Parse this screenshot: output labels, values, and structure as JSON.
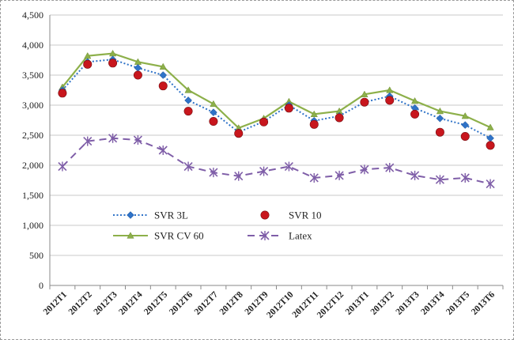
{
  "chart_data": {
    "type": "line",
    "title": "",
    "xlabel": "",
    "ylabel": "",
    "ylim": [
      0,
      4500
    ],
    "yticks": [
      "0",
      "500",
      "1,000",
      "1,500",
      "2,000",
      "2,500",
      "3,000",
      "3,500",
      "4,000",
      "4,500"
    ],
    "ytick_values": [
      0,
      500,
      1000,
      1500,
      2000,
      2500,
      3000,
      3500,
      4000,
      4500
    ],
    "categories": [
      "2012T1",
      "2012T2",
      "2012T3",
      "2012T4",
      "2012T5",
      "2012T6",
      "2012T7",
      "2012T8",
      "2012T9",
      "2012T10",
      "2012T11",
      "2012T12",
      "2013T1",
      "2013T2",
      "2013T3",
      "2013T4",
      "2013T5",
      "2013T6"
    ],
    "grid": "horizontal",
    "legend_position": "bottom-left-inside",
    "series": [
      {
        "name": "SVR 3L",
        "color": "#2f73c8",
        "line_style": "dotted",
        "marker": "diamond",
        "values": [
          3250,
          3720,
          3760,
          3620,
          3500,
          3080,
          2880,
          2550,
          2730,
          3000,
          2740,
          2820,
          3050,
          3150,
          2950,
          2780,
          2670,
          2450
        ]
      },
      {
        "name": "SVR 10",
        "color": "#c8161d",
        "line_style": "none",
        "marker": "circle",
        "values": [
          3200,
          3680,
          3700,
          3500,
          3320,
          2900,
          2730,
          2530,
          2720,
          2950,
          2680,
          2790,
          3050,
          3080,
          2850,
          2550,
          2480,
          2330
        ]
      },
      {
        "name": "SVR CV 60",
        "color": "#8db04a",
        "line_style": "solid",
        "marker": "triangle",
        "values": [
          3300,
          3820,
          3860,
          3720,
          3640,
          3250,
          3020,
          2620,
          2780,
          3060,
          2850,
          2900,
          3180,
          3250,
          3070,
          2900,
          2820,
          2630
        ]
      },
      {
        "name": "Latex",
        "color": "#7f5ea8",
        "line_style": "dashed",
        "marker": "star",
        "values": [
          1980,
          2400,
          2450,
          2420,
          2250,
          1980,
          1880,
          1820,
          1900,
          1980,
          1790,
          1830,
          1930,
          1960,
          1830,
          1760,
          1790,
          1690
        ]
      }
    ]
  }
}
